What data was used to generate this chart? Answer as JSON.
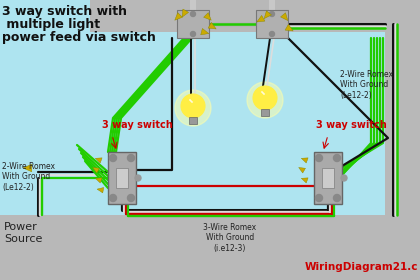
{
  "bg_color": "#aee4f0",
  "gray_panel": "#b8b8b8",
  "gray_dark": "#909090",
  "title_lines": [
    "3 way switch with",
    " multiple light",
    "power feed via switch"
  ],
  "title_color": "#111111",
  "title_fontsize": 9.5,
  "green": "#22cc00",
  "black": "#111111",
  "white_wire": "#dddddd",
  "red_wire": "#cc0000",
  "switch_gray": "#aaaaaa",
  "switch_dark": "#888888",
  "light_yellow": "#ffee44",
  "light_glow": "#ffffaa",
  "connector_yellow": "#ccaa00",
  "label_red": "#cc0000",
  "label_dark": "#222222",
  "watermark_color": "#cc0000",
  "watermark_text": "WiringDiagram21.c",
  "label_left_switch": "3 way switch",
  "label_right_switch": "3 way switch",
  "power_source_text": "Power\nSource",
  "label_left_romex": "2-Wire Romex\nWith Ground\n(Le12-2)",
  "label_right_romex": "2-Wire Romex\nWith Ground\n(Le12-2)",
  "label_mid_romex": "3-Wire Romex\nWith Ground\n(i.e12-3)"
}
